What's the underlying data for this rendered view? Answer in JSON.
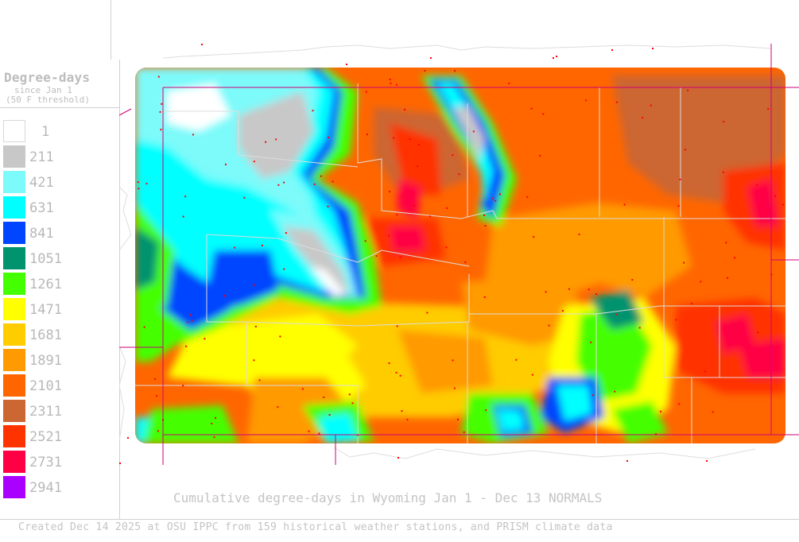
{
  "legend": {
    "title": "Degree-days",
    "subtitle_1": "since Jan 1",
    "subtitle_2": "(50 F threshold)",
    "entries": [
      {
        "value": "1",
        "color": "#ffffff"
      },
      {
        "value": "211",
        "color": "#c8c8c8"
      },
      {
        "value": "421",
        "color": "#7dfafa"
      },
      {
        "value": "631",
        "color": "#00ffff"
      },
      {
        "value": "841",
        "color": "#0045ff"
      },
      {
        "value": "1051",
        "color": "#00936e"
      },
      {
        "value": "1261",
        "color": "#44ff00"
      },
      {
        "value": "1471",
        "color": "#ffff00"
      },
      {
        "value": "1681",
        "color": "#ffcc00"
      },
      {
        "value": "1891",
        "color": "#ff9a00"
      },
      {
        "value": "2101",
        "color": "#ff6600"
      },
      {
        "value": "2311",
        "color": "#cc6633"
      },
      {
        "value": "2521",
        "color": "#ff3300"
      },
      {
        "value": "2731",
        "color": "#ff0044"
      },
      {
        "value": "2941",
        "color": "#aa00ff"
      }
    ]
  },
  "caption": "Cumulative degree-days in Wyoming  Jan 1 - Dec 13 NORMALS",
  "credit": "Created Dec 14 2025 at OSU IPPC from 159 historical weather stations, and PRISM climate data",
  "map": {
    "region": "Wyoming",
    "state_border_color": "#d0007a",
    "county_line_color": "#d8d8d8",
    "station_marker_color": "#ff0000"
  }
}
